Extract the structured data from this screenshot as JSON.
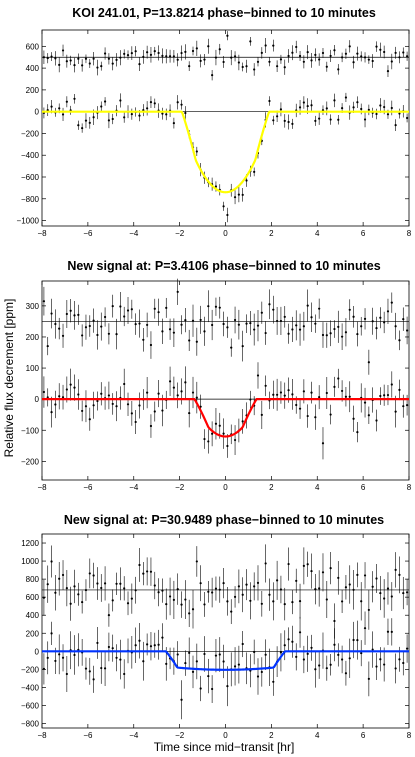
{
  "figure": {
    "ylabel": "Relative flux decrement [ppm]",
    "xlabel": "Time since mid−transit [hr]"
  },
  "chart_data": [
    {
      "type": "scatter",
      "title": "KOI 241.01, P=13.8214 phase−binned to 10 minutes",
      "xlim": [
        -8,
        8
      ],
      "ylim": [
        -1050,
        750
      ],
      "xticks": [
        -8,
        -6,
        -4,
        -2,
        0,
        2,
        4,
        6,
        8
      ],
      "yticks": [
        -1000,
        -800,
        -600,
        -400,
        -200,
        0,
        200,
        400,
        600
      ],
      "grid": false,
      "upper_baseline": 500,
      "lower_baseline": 0,
      "model": {
        "name": "transit model",
        "color": "#ffff00",
        "depth": 740,
        "ingress_start": 1.9,
        "flat_half_width": 1.3,
        "curvature": 0.4
      },
      "scatter_sigma_ppm": 60,
      "errorbar_ppm": 55,
      "n_points": 96
    },
    {
      "type": "scatter",
      "title": "New signal at: P=3.4106 phase−binned to 10 minutes",
      "xlim": [
        -8,
        8
      ],
      "ylim": [
        -260,
        380
      ],
      "xticks": [
        -8,
        -6,
        -4,
        -2,
        0,
        2,
        4,
        6,
        8
      ],
      "yticks": [
        -200,
        -100,
        0,
        100,
        200,
        300
      ],
      "grid": false,
      "upper_baseline": 250,
      "lower_baseline": 0,
      "model": {
        "name": "transit model",
        "color": "#ff0000",
        "depth": 120,
        "ingress_start": 1.35,
        "flat_half_width": 0.75,
        "curvature": 0.25
      },
      "scatter_sigma_ppm": 40,
      "errorbar_ppm": 40,
      "n_points": 96
    },
    {
      "type": "scatter",
      "title": "New signal at: P=30.9489 phase−binned to 10 minutes",
      "xlim": [
        -8,
        8
      ],
      "ylim": [
        -850,
        1300
      ],
      "xticks": [
        -8,
        -6,
        -4,
        -2,
        0,
        2,
        4,
        6,
        8
      ],
      "yticks": [
        -800,
        -600,
        -400,
        -200,
        0,
        200,
        400,
        600,
        800,
        1000,
        1200
      ],
      "grid": false,
      "upper_baseline": 680,
      "lower_baseline": 0,
      "model": {
        "name": "transit model",
        "color": "#0033ff",
        "depth": 205,
        "ingress_start": 2.6,
        "flat_half_width": 2.1,
        "curvature": 0.12
      },
      "scatter_sigma_ppm": 150,
      "errorbar_ppm": 170,
      "n_points": 96
    }
  ]
}
